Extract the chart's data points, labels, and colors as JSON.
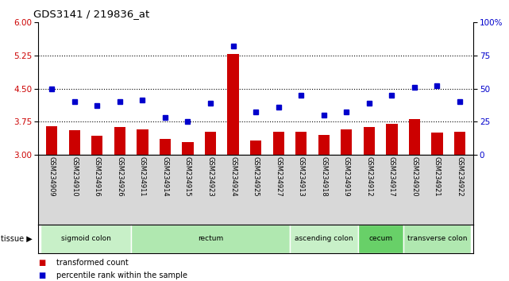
{
  "title": "GDS3141 / 219836_at",
  "samples": [
    "GSM234909",
    "GSM234910",
    "GSM234916",
    "GSM234926",
    "GSM234911",
    "GSM234914",
    "GSM234915",
    "GSM234923",
    "GSM234924",
    "GSM234925",
    "GSM234927",
    "GSM234913",
    "GSM234918",
    "GSM234919",
    "GSM234912",
    "GSM234917",
    "GSM234920",
    "GSM234921",
    "GSM234922"
  ],
  "bar_values": [
    3.65,
    3.55,
    3.42,
    3.62,
    3.58,
    3.35,
    3.28,
    3.52,
    5.28,
    3.32,
    3.52,
    3.52,
    3.45,
    3.58,
    3.62,
    3.7,
    3.8,
    3.5,
    3.52
  ],
  "dot_percentiles": [
    50,
    40,
    37,
    40,
    41,
    28,
    25,
    39,
    82,
    32,
    36,
    45,
    30,
    32,
    39,
    45,
    51,
    52,
    40
  ],
  "tissues": [
    {
      "label": "sigmoid colon",
      "start": 0,
      "end": 4,
      "color": "#c8f0c8"
    },
    {
      "label": "rectum",
      "start": 4,
      "end": 11,
      "color": "#b0e8b0"
    },
    {
      "label": "ascending colon",
      "start": 11,
      "end": 14,
      "color": "#c8f0c8"
    },
    {
      "label": "cecum",
      "start": 14,
      "end": 16,
      "color": "#68d068"
    },
    {
      "label": "transverse colon",
      "start": 16,
      "end": 19,
      "color": "#b0e8b0"
    }
  ],
  "ylim_left": [
    3.0,
    6.0
  ],
  "ylim_right": [
    0,
    100
  ],
  "yticks_left": [
    3.0,
    3.75,
    4.5,
    5.25,
    6.0
  ],
  "yticks_right": [
    0,
    25,
    50,
    75,
    100
  ],
  "hlines": [
    3.75,
    4.5,
    5.25
  ],
  "bar_color": "#cc0000",
  "dot_color": "#0000cc",
  "bar_width": 0.5,
  "bg_color": "#d8d8d8"
}
